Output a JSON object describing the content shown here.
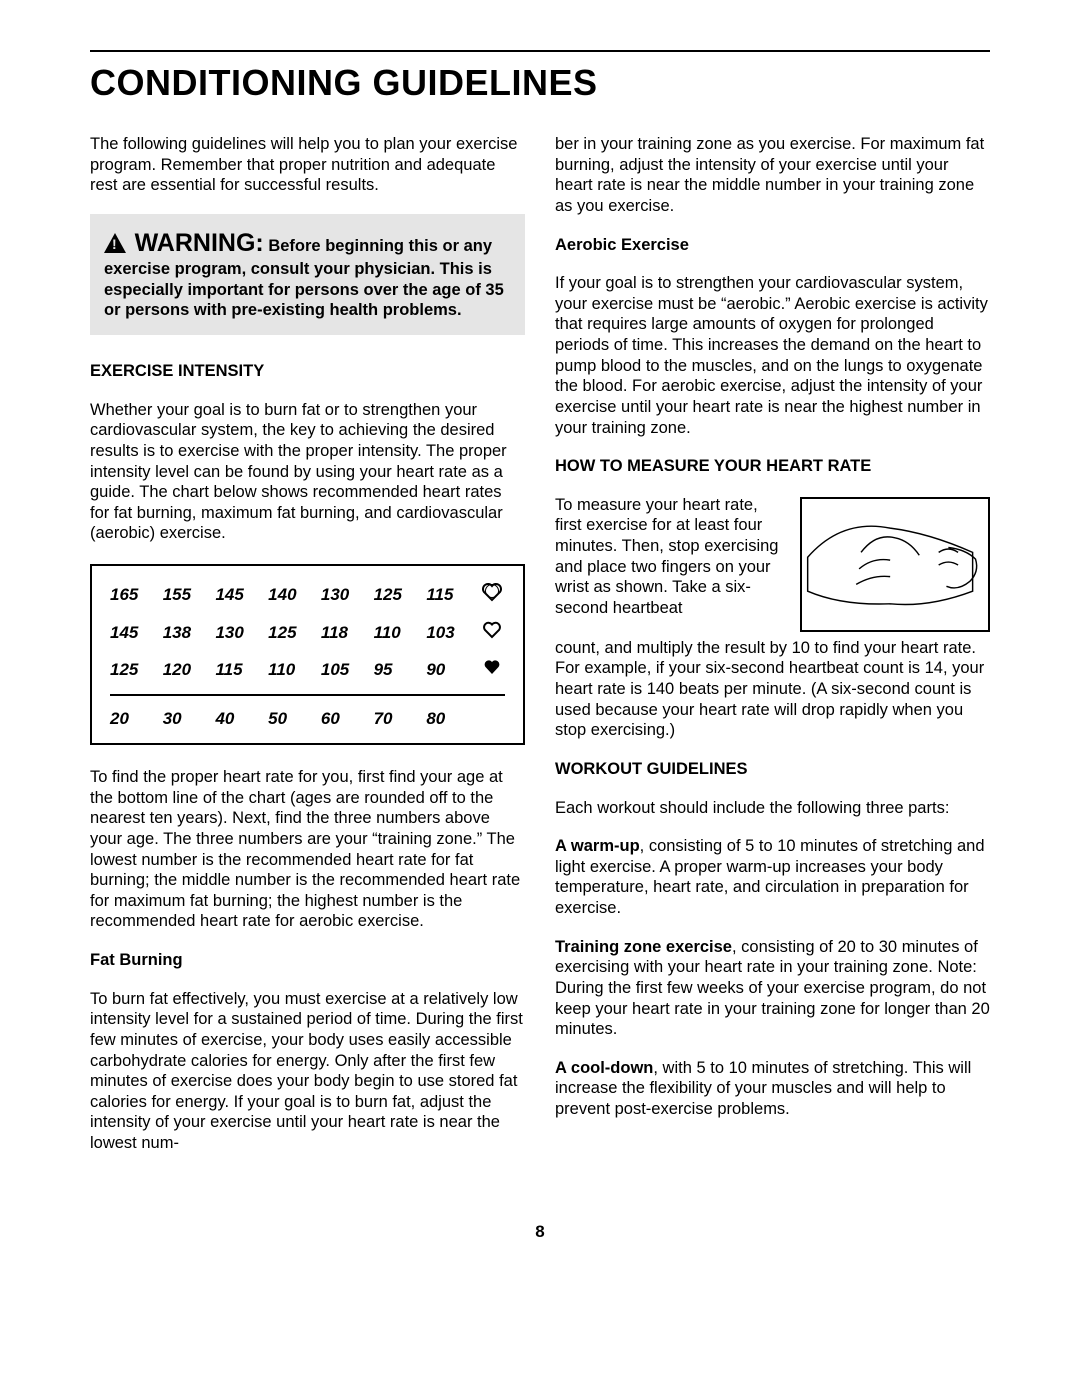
{
  "title": "CONDITIONING GUIDELINES",
  "intro": "The following guidelines will help you to plan your exercise program. Remember that proper nutrition and adequate rest are essential for successful results.",
  "warning": {
    "label": "WARNING:",
    "text": "Before beginning this or any exercise program, consult your physician. This is especially important for persons over the age of 35 or persons with pre-existing health problems."
  },
  "exercise_intensity": {
    "heading": "EXERCISE INTENSITY",
    "p1": "Whether your goal is to burn fat or to strengthen your cardiovascular system, the key to achieving the desired results is to exercise with the proper intensity. The proper intensity level can be found by using your heart rate as a guide. The chart below shows recommended heart rates for fat burning, maximum fat burning, and cardiovascular (aerobic) exercise.",
    "chart": {
      "rows": [
        {
          "values": [
            "165",
            "155",
            "145",
            "140",
            "130",
            "125",
            "115"
          ],
          "icon": "aerobic"
        },
        {
          "values": [
            "145",
            "138",
            "130",
            "125",
            "118",
            "110",
            "103"
          ],
          "icon": "maxfat"
        },
        {
          "values": [
            "125",
            "120",
            "115",
            "110",
            "105",
            "95",
            "90"
          ],
          "icon": "fat"
        }
      ],
      "ages": [
        "20",
        "30",
        "40",
        "50",
        "60",
        "70",
        "80"
      ],
      "border_color": "#000000",
      "font_style": "italic-bold",
      "font_size": 17
    },
    "p2": "To find the proper heart rate for you, first find your age at the bottom line of the chart (ages are rounded off to the nearest ten years). Next, find the three numbers above your age. The three numbers are your “training zone.” The lowest number is the recommended heart rate for fat burning; the middle number is the recommended heart rate for maximum fat burning; the highest number is the recommended heart rate for aerobic exercise."
  },
  "fat_burning": {
    "heading": "Fat Burning",
    "p1": "To burn fat effectively, you must exercise at a relatively low intensity level for a sustained period of time. During the first few minutes of exercise, your body uses easily accessible carbohydrate calories for energy. Only after the first few minutes of exercise does your body begin to use stored fat calories for energy. If your goal is to burn fat, adjust the intensity of your exercise until your heart rate is near the lowest num-",
    "p1_cont": "ber in your training zone as you exercise. For maximum fat burning, adjust the intensity of your exercise until your heart rate is near the middle number in your training zone as you exercise."
  },
  "aerobic": {
    "heading": "Aerobic Exercise",
    "p1": "If your goal is to strengthen your cardiovascular system, your exercise must be “aerobic.” Aerobic exercise is activity that requires large amounts of oxygen for prolonged periods of time. This increases the demand on the heart to pump blood to the muscles, and on the lungs to oxygenate the blood. For aerobic exercise, adjust the intensity of your exercise until your heart rate is near the highest number in your training zone."
  },
  "measure": {
    "heading": "HOW TO MEASURE YOUR HEART RATE",
    "p1": "To measure your heart rate, first exercise for at least four minutes. Then, stop exercising and place two fingers on your wrist as shown. Take a six-second heartbeat",
    "p2": "count, and multiply the result by 10 to find your heart rate. For example, if your six-second heartbeat count is 14, your heart rate is 140 beats per minute. (A six-second count is used because your heart rate will drop rapidly when you stop exercising.)"
  },
  "workout": {
    "heading": "WORKOUT GUIDELINES",
    "lead": "Each workout should include the following three parts:",
    "warmup_b": "A warm-up",
    "warmup": ", consisting of 5 to 10 minutes of stretching and light exercise. A proper warm-up increases your body temperature, heart rate, and circulation in preparation for exercise.",
    "train_b": "Training zone exercise",
    "train": ", consisting of 20 to 30 minutes of exercising with your heart rate in your training zone. Note: During the first few weeks of your exercise program, do not keep your heart rate in your training zone for longer than 20 minutes.",
    "cool_b": "A cool-down",
    "cool": ", with 5 to 10 minutes of stretching. This will increase the flexibility of your muscles and will help to prevent post-exercise problems."
  },
  "page_number": "8"
}
